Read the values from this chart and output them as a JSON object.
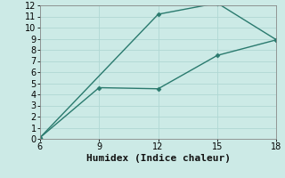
{
  "xlabel": "Humidex (Indice chaleur)",
  "background_color": "#cceae6",
  "grid_color": "#b0d8d4",
  "line_color": "#2a7a6e",
  "xlim": [
    6,
    18
  ],
  "ylim": [
    0,
    12
  ],
  "xticks": [
    6,
    9,
    12,
    15,
    18
  ],
  "yticks": [
    0,
    1,
    2,
    3,
    4,
    5,
    6,
    7,
    8,
    9,
    10,
    11,
    12
  ],
  "series1_x": [
    6,
    12,
    15,
    18
  ],
  "series1_y": [
    0.1,
    11.2,
    12.2,
    8.9
  ],
  "series2_x": [
    6,
    9,
    12,
    15,
    18
  ],
  "series2_y": [
    0.1,
    4.6,
    4.5,
    7.5,
    8.9
  ],
  "marker": "D",
  "marker_size": 2.5,
  "line_width": 1.0,
  "xlabel_fontsize": 8,
  "tick_fontsize": 7
}
